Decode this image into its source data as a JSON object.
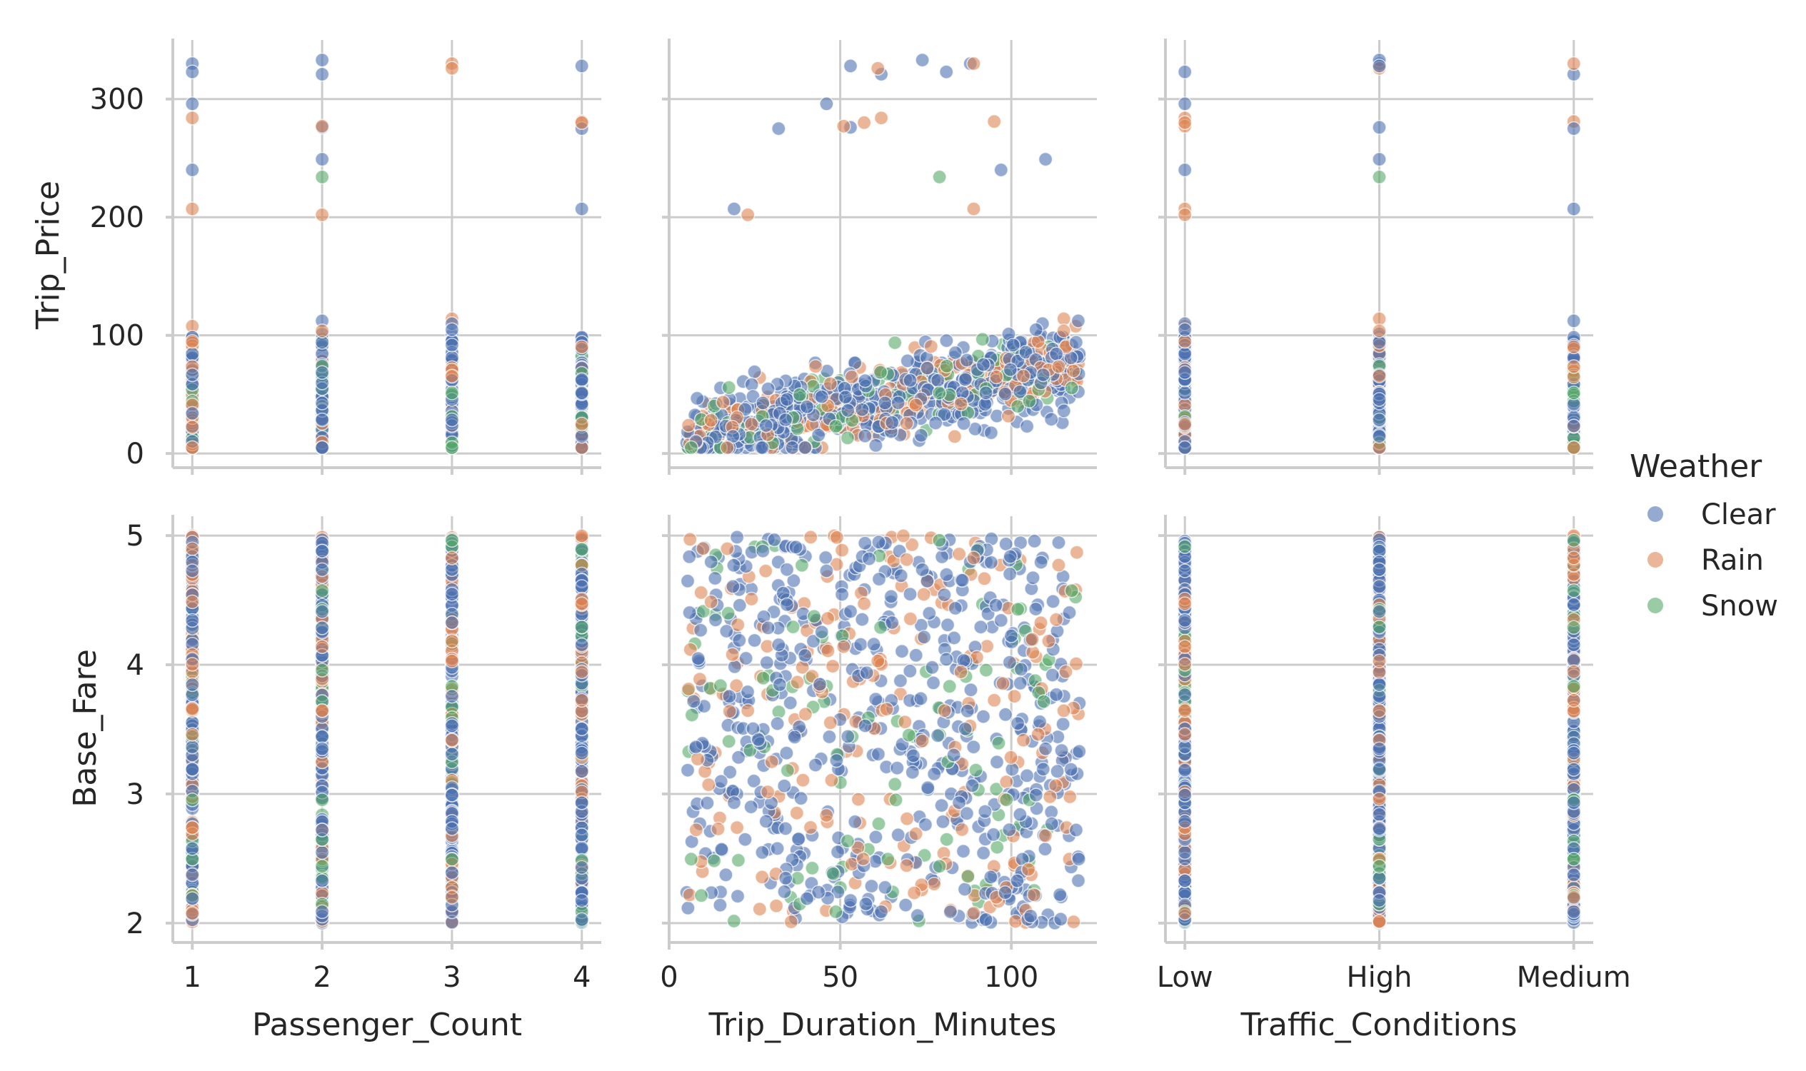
{
  "legend": {
    "title": "Weather",
    "items": [
      {
        "label": "Clear",
        "color": "#4c72b0"
      },
      {
        "label": "Rain",
        "color": "#dd8452"
      },
      {
        "label": "Snow",
        "color": "#55a868"
      }
    ]
  },
  "chart_data": {
    "type": "scatter",
    "layout": "pair-grid 2 rows x 3 columns",
    "hue": "Weather",
    "colors": {
      "Clear": "#4c72b0",
      "Rain": "#dd8452",
      "Snow": "#55a868"
    },
    "marker_alpha": 0.6,
    "grid": true,
    "legend_placement": "right",
    "x_variables": [
      {
        "name": "Passenger_Count",
        "type": "numeric",
        "xlim": [
          0.85,
          4.15
        ],
        "ticks": [
          "1",
          "2",
          "3",
          "4"
        ]
      },
      {
        "name": "Trip_Duration_Minutes",
        "type": "numeric",
        "xlim": [
          0,
          125
        ],
        "ticks": [
          "0",
          "50",
          "100"
        ]
      },
      {
        "name": "Traffic_Conditions",
        "type": "categorical",
        "categories": [
          "Low",
          "High",
          "Medium"
        ],
        "ticks": [
          "Low",
          "High",
          "Medium"
        ]
      }
    ],
    "y_variables": [
      {
        "name": "Trip_Price",
        "ylim": [
          -12,
          350
        ],
        "ticks": [
          "0",
          "100",
          "200",
          "300"
        ]
      },
      {
        "name": "Base_Fare",
        "ylim": [
          1.85,
          5.15
        ],
        "ticks": [
          "2",
          "3",
          "4",
          "5"
        ]
      }
    ],
    "outliers_trip_price": [
      {
        "passenger_count": 1,
        "duration": 88,
        "traffic": "High",
        "price": 330,
        "weather": "Clear"
      },
      {
        "passenger_count": 1,
        "duration": 81,
        "traffic": "Low",
        "price": 323,
        "weather": "Clear"
      },
      {
        "passenger_count": 1,
        "duration": 46,
        "traffic": "Low",
        "price": 296,
        "weather": "Clear"
      },
      {
        "passenger_count": 1,
        "duration": 62,
        "traffic": "Low",
        "price": 284,
        "weather": "Rain"
      },
      {
        "passenger_count": 1,
        "duration": 97,
        "traffic": "Low",
        "price": 240,
        "weather": "Clear"
      },
      {
        "passenger_count": 1,
        "duration": 89,
        "traffic": "Low",
        "price": 207,
        "weather": "Rain"
      },
      {
        "passenger_count": 2,
        "duration": 74,
        "traffic": "High",
        "price": 333,
        "weather": "Clear"
      },
      {
        "passenger_count": 2,
        "duration": 62,
        "traffic": "Medium",
        "price": 321,
        "weather": "Clear"
      },
      {
        "passenger_count": 2,
        "duration": 53,
        "traffic": "High",
        "price": 276,
        "weather": "Clear"
      },
      {
        "passenger_count": 2,
        "duration": 51,
        "traffic": "Low",
        "price": 277,
        "weather": "Rain"
      },
      {
        "passenger_count": 2,
        "duration": 110,
        "traffic": "High",
        "price": 249,
        "weather": "Clear"
      },
      {
        "passenger_count": 2,
        "duration": 79,
        "traffic": "High",
        "price": 234,
        "weather": "Snow"
      },
      {
        "passenger_count": 2,
        "duration": 23,
        "traffic": "Low",
        "price": 202,
        "weather": "Rain"
      },
      {
        "passenger_count": 3,
        "duration": 89,
        "traffic": "Medium",
        "price": 330,
        "weather": "Rain"
      },
      {
        "passenger_count": 3,
        "duration": 61,
        "traffic": "High",
        "price": 326,
        "weather": "Rain"
      },
      {
        "passenger_count": 4,
        "duration": 53,
        "traffic": "High",
        "price": 328,
        "weather": "Clear"
      },
      {
        "passenger_count": 4,
        "duration": 95,
        "traffic": "Medium",
        "price": 281,
        "weather": "Rain"
      },
      {
        "passenger_count": 4,
        "duration": 19,
        "traffic": "Medium",
        "price": 207,
        "weather": "Clear"
      },
      {
        "passenger_count": 4,
        "duration": 32,
        "traffic": "Medium",
        "price": 275,
        "weather": "Clear"
      },
      {
        "passenger_count": 4,
        "duration": 57,
        "traffic": "Low",
        "price": 280,
        "weather": "Rain"
      }
    ],
    "bulk_description": {
      "trip_price_range": [
        5,
        140
      ],
      "trip_price_trend": "approximately 10 + 0.55 * duration with noise",
      "base_fare_range": [
        2.0,
        5.0
      ],
      "duration_range": [
        5,
        120
      ],
      "weather_mix": {
        "Clear": 0.68,
        "Rain": 0.22,
        "Snow": 0.1
      }
    }
  }
}
